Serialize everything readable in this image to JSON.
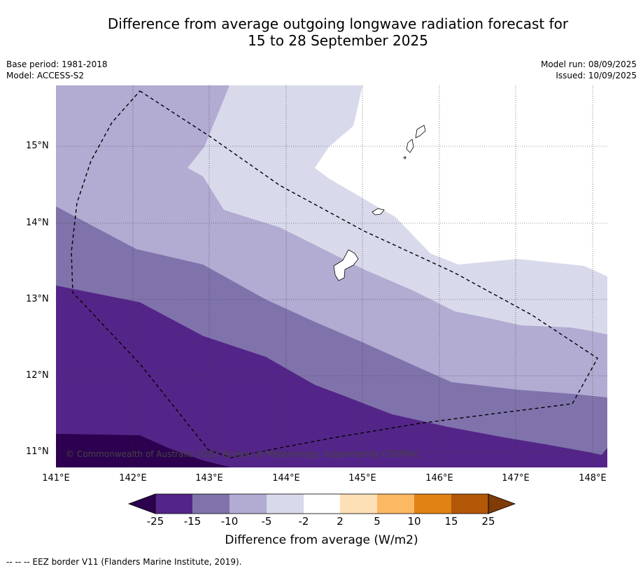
{
  "title": {
    "line1": "Difference from average outgoing longwave radiation forecast for",
    "line2": "15 to 28 September 2025"
  },
  "meta": {
    "base_period": "Base period: 1981-2018",
    "model": "Model: ACCESS-S2",
    "model_run": "Model run: 08/09/2025",
    "issued": "Issued: 10/09/2025"
  },
  "map": {
    "lat_labels": [
      "15°N",
      "14°N",
      "13°N",
      "12°N",
      "11°N"
    ],
    "lon_labels": [
      "141°E",
      "142°E",
      "143°E",
      "144°E",
      "145°E",
      "146°E",
      "147°E",
      "148°E"
    ],
    "lat_range": [
      10.8,
      15.8
    ],
    "lon_range": [
      141.0,
      148.2
    ],
    "copyright": "© Commonwealth of Australia 2025, Bureau of Meteorology, supported by COSPPac",
    "colors": {
      "lt_minus25": "#2d0050",
      "m25_m15": "#542588",
      "m15_m10": "#8073ac",
      "m10_m5": "#b2abd2",
      "m5_m2": "#d8daeb",
      "m2_2": "#ffffff",
      "p2_5": "#fee0b6",
      "p5_10": "#fdb863",
      "p10_15": "#e08214",
      "p15_25": "#b35806",
      "gt_25": "#7f3b08"
    }
  },
  "colorbar": {
    "labels": [
      "-25",
      "-15",
      "-10",
      "-5",
      "-2",
      "2",
      "5",
      "10",
      "15",
      "25"
    ],
    "title": "Difference from average (W/m2)"
  },
  "footnote": "--  --  -- EEZ border V11 (Flanders Marine Institute, 2019)."
}
